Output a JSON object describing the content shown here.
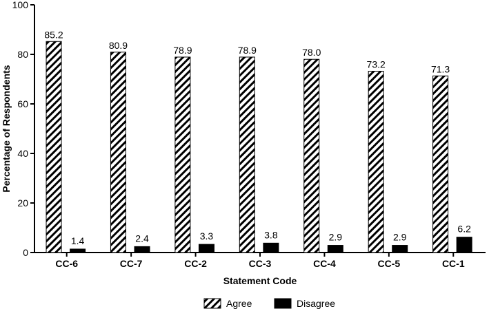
{
  "chart_data": {
    "type": "bar",
    "title": "",
    "xlabel": "Statement Code",
    "ylabel": "Percentage of Respondents",
    "ylim": [
      0,
      100
    ],
    "yticks": [
      0,
      20,
      40,
      60,
      80,
      100
    ],
    "categories": [
      "CC-6",
      "CC-7",
      "CC-2",
      "CC-3",
      "CC-4",
      "CC-5",
      "CC-1"
    ],
    "series": [
      {
        "name": "Agree",
        "fill": "hatched",
        "color": "#000000",
        "values": [
          85.2,
          80.9,
          78.9,
          78.9,
          78.0,
          73.2,
          71.3
        ],
        "labels": [
          "85.2",
          "80.9",
          "78.9",
          "78.9",
          "78.0",
          "73.2",
          "71.3"
        ]
      },
      {
        "name": "Disagree",
        "fill": "solid",
        "color": "#000000",
        "values": [
          1.4,
          2.4,
          3.3,
          3.8,
          2.9,
          2.9,
          6.2
        ],
        "labels": [
          "1.4",
          "2.4",
          "3.3",
          "3.8",
          "2.9",
          "2.9",
          "6.2"
        ]
      }
    ],
    "grid": false,
    "legend": "bottom-center"
  }
}
